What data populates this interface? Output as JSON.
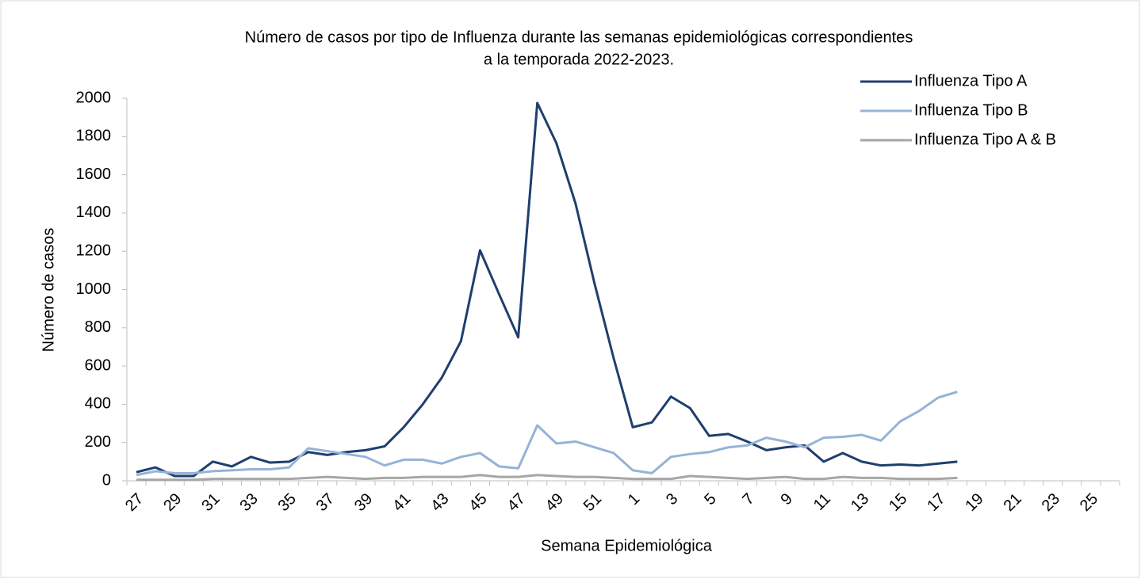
{
  "chart_data": {
    "type": "line",
    "title": [
      "Número de casos por tipo de Influenza durante las semanas epidemiológicas correspondientes",
      "a la temporada 2022-2023."
    ],
    "x_label": "Semana Epidemiológica",
    "y_label": "Número de casos",
    "categories": [
      "27",
      null,
      "29",
      null,
      "31",
      null,
      "33",
      null,
      "35",
      null,
      "37",
      null,
      "39",
      null,
      "41",
      null,
      "43",
      null,
      "45",
      null,
      "47",
      null,
      "49",
      null,
      "51",
      null,
      "1",
      null,
      "3",
      null,
      "5",
      null,
      "7",
      null,
      "9",
      null,
      "11",
      null,
      "13",
      null,
      "15",
      null,
      "17",
      null,
      "19",
      null,
      "21",
      null,
      "23",
      null,
      "25",
      null
    ],
    "series": [
      {
        "name": "Influenza Tipo A",
        "color": "#1f3f6e",
        "values": [
          45,
          70,
          25,
          25,
          100,
          75,
          125,
          95,
          100,
          150,
          135,
          150,
          160,
          180,
          280,
          400,
          540,
          730,
          1205,
          975,
          750,
          1975,
          1765,
          1450,
          1030,
          640,
          280,
          305,
          440,
          380,
          235,
          245,
          205,
          160,
          175,
          185,
          100,
          145,
          100,
          80,
          85,
          80,
          90,
          100,
          null,
          null,
          null,
          null,
          null,
          null,
          null,
          null
        ]
      },
      {
        "name": "Influenza Tipo B",
        "color": "#95b3d7",
        "values": [
          30,
          50,
          40,
          40,
          50,
          55,
          60,
          60,
          70,
          170,
          155,
          140,
          125,
          80,
          110,
          110,
          90,
          125,
          145,
          75,
          65,
          290,
          195,
          205,
          175,
          145,
          55,
          40,
          125,
          140,
          150,
          175,
          185,
          225,
          205,
          175,
          225,
          230,
          240,
          210,
          310,
          365,
          435,
          465,
          null,
          null,
          null,
          null,
          null,
          null,
          null,
          null
        ]
      },
      {
        "name": "Influenza Tipo A & B",
        "color": "#a6a6a6",
        "values": [
          5,
          5,
          5,
          5,
          10,
          10,
          10,
          10,
          10,
          15,
          20,
          15,
          10,
          15,
          15,
          20,
          20,
          20,
          30,
          20,
          20,
          30,
          25,
          20,
          20,
          15,
          10,
          10,
          10,
          25,
          20,
          15,
          10,
          15,
          20,
          10,
          10,
          20,
          15,
          15,
          10,
          10,
          10,
          15,
          null,
          null,
          null,
          null,
          null,
          null,
          null,
          null
        ]
      }
    ],
    "ylim": [
      0,
      2000
    ],
    "yticks": [
      0,
      200,
      400,
      600,
      800,
      1000,
      1200,
      1400,
      1600,
      1800,
      2000
    ],
    "legend": "top-right"
  }
}
